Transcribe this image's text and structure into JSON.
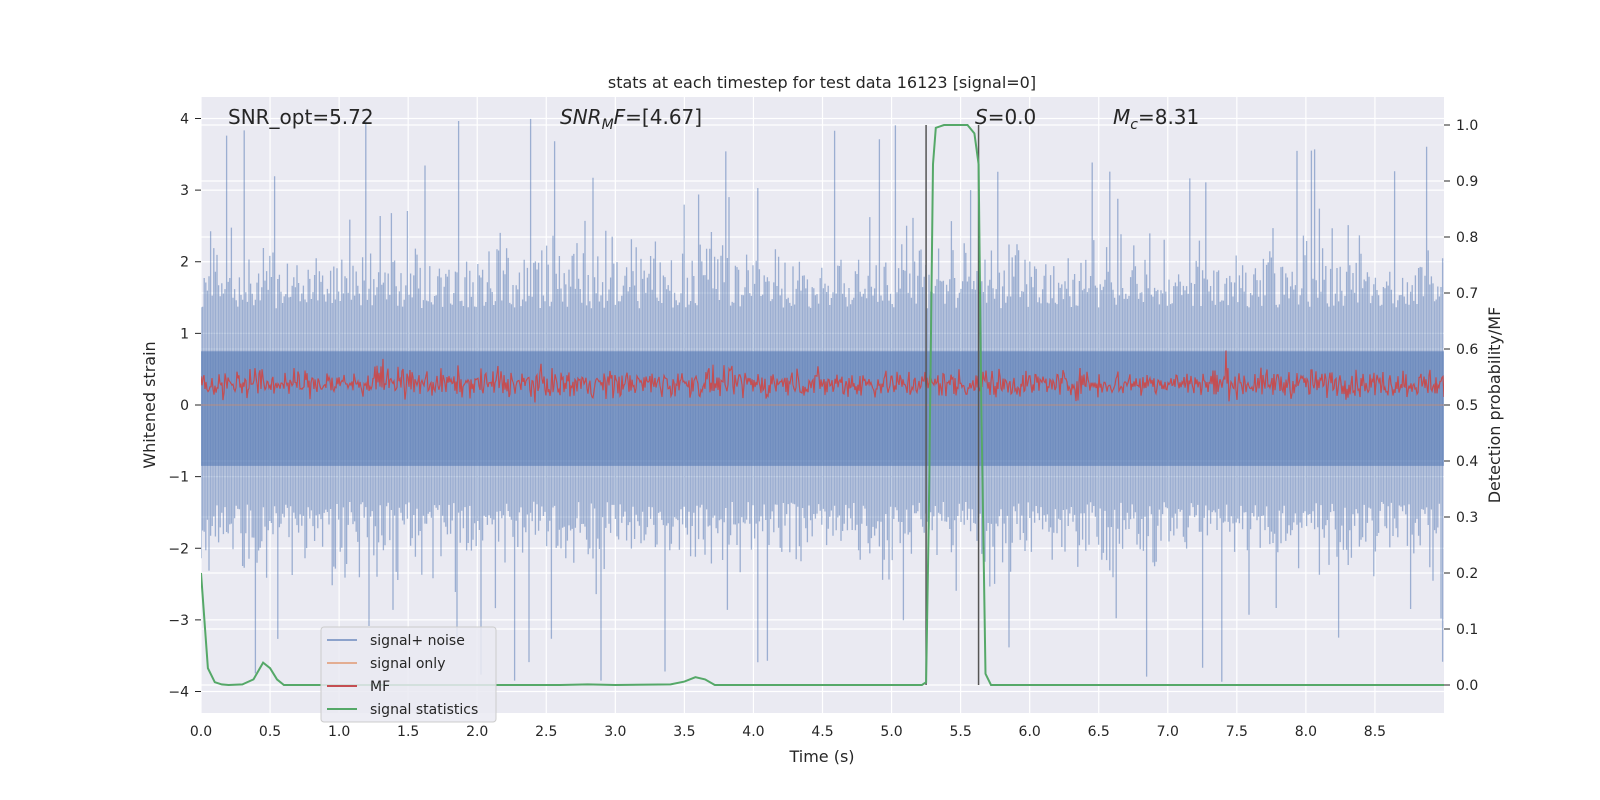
{
  "chart_data": {
    "type": "line",
    "title": "stats at each timestep for test data 16123 [signal=0]",
    "xlabel": "Time (s)",
    "ylabel": "Whitened strain",
    "y2label": "Detection probability/MF",
    "xlim": [
      0.0,
      9.0
    ],
    "ylim": [
      -4.3,
      4.3
    ],
    "y2lim": [
      -0.05,
      1.05
    ],
    "xticks": [
      "0.0",
      "0.5",
      "1.0",
      "1.5",
      "2.0",
      "2.5",
      "3.0",
      "3.5",
      "4.0",
      "4.5",
      "5.0",
      "5.5",
      "6.0",
      "6.5",
      "7.0",
      "7.5",
      "8.0",
      "8.5"
    ],
    "yticks": [
      "4",
      "3",
      "2",
      "1",
      "0",
      "−1",
      "−2",
      "−3",
      "−4"
    ],
    "y2ticks": [
      "1.0",
      "0.9",
      "0.8",
      "0.7",
      "0.6",
      "0.5",
      "0.4",
      "0.3",
      "0.2",
      "0.1",
      "0.0"
    ],
    "grid": true,
    "legend_position": "lower-left",
    "annotations": {
      "snr_opt": "SNR_opt=5.72",
      "snr_mf_sym": "SNR",
      "snr_mf_sub": "M",
      "snr_mf_tail": "F",
      "snr_mf_val": "=[4.67]",
      "s_sym": "S",
      "s_val": "=0.0",
      "mc_sym": "M",
      "mc_sub": "c",
      "mc_val": "=8.31"
    },
    "vlines_x": [
      5.25,
      5.63
    ],
    "series": [
      {
        "name": "signal+ noise",
        "color": "#4c72b0",
        "axis": "left",
        "style": "noise band",
        "amplitude_typical": 1.5,
        "amplitude_peak": 4.0
      },
      {
        "name": "signal only",
        "color": "#dd8452",
        "axis": "left",
        "values_note": "zero"
      },
      {
        "name": "MF",
        "color": "#c44e52",
        "axis": "left",
        "style": "noise band",
        "mean": 0.3,
        "amplitude": 0.25
      },
      {
        "name": "signal statistics",
        "color": "#55a868",
        "axis": "right",
        "x": [
          0.0,
          0.05,
          0.1,
          0.15,
          0.2,
          0.3,
          0.38,
          0.45,
          0.5,
          0.55,
          0.6,
          1.0,
          2.0,
          2.6,
          2.8,
          3.0,
          3.4,
          3.5,
          3.58,
          3.65,
          3.72,
          4.0,
          5.0,
          5.22,
          5.25,
          5.27,
          5.3,
          5.32,
          5.38,
          5.45,
          5.55,
          5.6,
          5.63,
          5.65,
          5.68,
          5.72,
          6.0,
          7.0,
          8.0,
          9.0
        ],
        "values": [
          0.2,
          0.03,
          0.005,
          0.001,
          0.0,
          0.001,
          0.01,
          0.04,
          0.03,
          0.01,
          0.0,
          0.0,
          0.0,
          0.0,
          0.001,
          0.0,
          0.001,
          0.006,
          0.014,
          0.01,
          0.0,
          0.0,
          0.0,
          0.0,
          0.005,
          0.3,
          0.93,
          0.995,
          1.0,
          1.0,
          1.0,
          0.985,
          0.93,
          0.5,
          0.02,
          0.0,
          0.0,
          0.0,
          0.0,
          0.0
        ]
      }
    ]
  }
}
